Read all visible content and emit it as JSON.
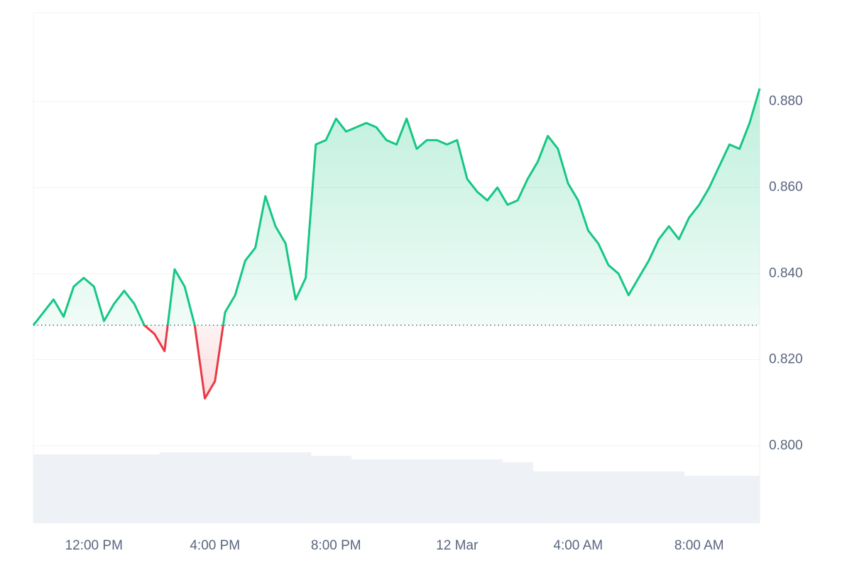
{
  "chart_data": {
    "type": "line",
    "categories": [
      null,
      null,
      null,
      null,
      null,
      null,
      "12:00 PM",
      null,
      null,
      null,
      null,
      null,
      null,
      null,
      null,
      null,
      null,
      null,
      "4:00 PM",
      null,
      null,
      null,
      null,
      null,
      null,
      null,
      null,
      null,
      null,
      null,
      "8:00 PM",
      null,
      null,
      null,
      null,
      null,
      null,
      null,
      null,
      null,
      null,
      null,
      "12 Mar",
      null,
      null,
      null,
      null,
      null,
      null,
      null,
      null,
      null,
      null,
      null,
      "4:00 AM",
      null,
      null,
      null,
      null,
      null,
      null,
      null,
      null,
      null,
      null,
      null,
      "8:00 AM",
      null,
      null,
      null,
      null,
      null,
      null
    ],
    "values": [
      0.828,
      0.831,
      0.834,
      0.83,
      0.837,
      0.839,
      0.837,
      0.829,
      0.833,
      0.836,
      0.833,
      0.828,
      0.826,
      0.822,
      0.841,
      0.837,
      0.828,
      0.811,
      0.815,
      0.831,
      0.835,
      0.843,
      0.846,
      0.858,
      0.851,
      0.847,
      0.834,
      0.839,
      0.87,
      0.871,
      0.876,
      0.873,
      0.874,
      0.875,
      0.874,
      0.871,
      0.87,
      0.876,
      0.869,
      0.871,
      0.871,
      0.87,
      0.871,
      0.862,
      0.859,
      0.857,
      0.86,
      0.856,
      0.857,
      0.862,
      0.866,
      0.872,
      0.869,
      0.861,
      0.857,
      0.85,
      0.847,
      0.842,
      0.84,
      0.835,
      0.839,
      0.843,
      0.848,
      0.851,
      0.848,
      0.853,
      0.856,
      0.86,
      0.865,
      0.87,
      0.869,
      0.875,
      0.883
    ],
    "reference_line": 0.828,
    "color_up": "#16c784",
    "color_down": "#ea3943",
    "ylim": [
      0.782,
      0.9006
    ],
    "yticks": [
      {
        "value": 0.8,
        "label": "0.800"
      },
      {
        "value": 0.82,
        "label": "0.820"
      },
      {
        "value": 0.84,
        "label": "0.840"
      },
      {
        "value": 0.86,
        "label": "0.860"
      },
      {
        "value": 0.88,
        "label": "0.880"
      }
    ],
    "grid": true,
    "volume": [
      97,
      97,
      97,
      97,
      97,
      97,
      97,
      97,
      97,
      97,
      97,
      97,
      97,
      100,
      100,
      100,
      100,
      100,
      100,
      100,
      100,
      100,
      100,
      100,
      100,
      100,
      100,
      100,
      95,
      95,
      95,
      95,
      90,
      90,
      90,
      90,
      90,
      90,
      90,
      90,
      90,
      90,
      90,
      90,
      90,
      90,
      90,
      86,
      86,
      86,
      73,
      73,
      73,
      73,
      73,
      73,
      73,
      73,
      73,
      73,
      73,
      73,
      73,
      73,
      73,
      67,
      67,
      67,
      67,
      67,
      67,
      67,
      67
    ],
    "volume_ylim": [
      0,
      100
    ],
    "volume_color": "#eef1f5"
  }
}
